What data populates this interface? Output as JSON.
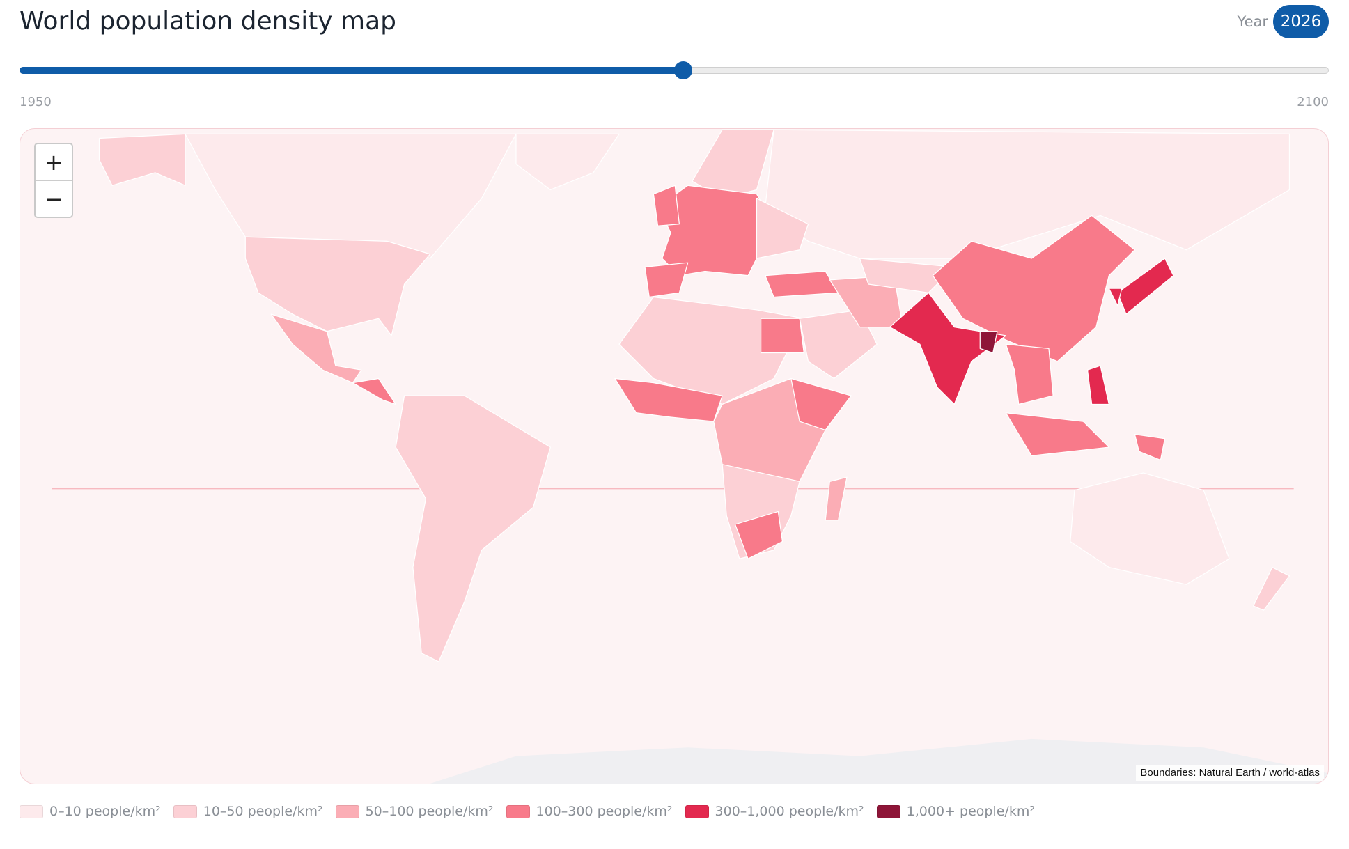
{
  "header": {
    "title": "World population density map",
    "year_label": "Year"
  },
  "slider": {
    "value": 2026,
    "min": 1950,
    "max": 2100
  },
  "map": {
    "zoom_in": "+",
    "zoom_out": "−",
    "attribution": "Boundaries: Natural Earth / world-atlas"
  },
  "legend": [
    {
      "label": "0–10 people/km²",
      "color": "#fdeaec"
    },
    {
      "label": "10–50 people/km²",
      "color": "#fcd0d5"
    },
    {
      "label": "50–100 people/km²",
      "color": "#fbadb5"
    },
    {
      "label": "100–300 people/km²",
      "color": "#f87a8a"
    },
    {
      "label": "300–1,000 people/km²",
      "color": "#e3294f"
    },
    {
      "label": "1,000+ people/km²",
      "color": "#8e1538"
    }
  ]
}
